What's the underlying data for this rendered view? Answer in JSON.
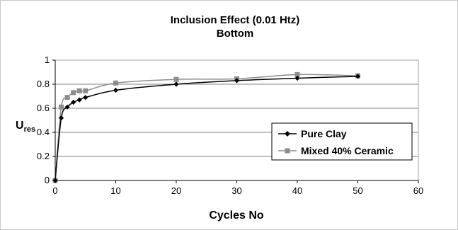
{
  "chart_data": {
    "type": "line",
    "title": "Inclusion Effect (0.01 Htz)",
    "subtitle": "Bottom",
    "xlabel": "Cycles No",
    "ylabel_main": "U",
    "ylabel_sub": "res",
    "xlim": [
      0,
      60
    ],
    "ylim": [
      0,
      1
    ],
    "xticks": [
      "0",
      "10",
      "20",
      "30",
      "40",
      "50",
      "60"
    ],
    "yticks": [
      "0",
      "0.2",
      "0.4",
      "0.6",
      "0.8",
      "1"
    ],
    "grid": "horizontal",
    "legend_position": "inside right",
    "series": [
      {
        "name": "Pure Clay",
        "marker": "diamond",
        "color": "#000000",
        "x": [
          0,
          1,
          2,
          3,
          4,
          5,
          10,
          20,
          30,
          40,
          50
        ],
        "y": [
          0,
          0.52,
          0.61,
          0.65,
          0.67,
          0.69,
          0.75,
          0.8,
          0.83,
          0.85,
          0.865
        ]
      },
      {
        "name": "Mixed 40% Ceramic",
        "marker": "square",
        "color": "#8c8c8c",
        "x": [
          0,
          1,
          2,
          3,
          4,
          5,
          10,
          20,
          30,
          40,
          50
        ],
        "y": [
          0,
          0.61,
          0.69,
          0.73,
          0.745,
          0.745,
          0.81,
          0.84,
          0.845,
          0.88,
          0.87
        ]
      }
    ]
  }
}
